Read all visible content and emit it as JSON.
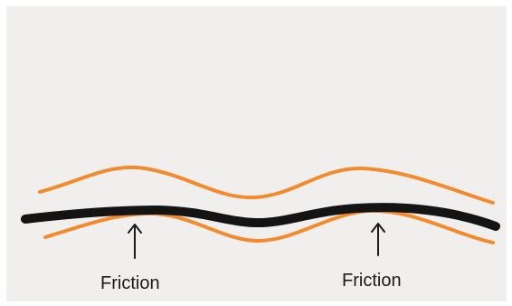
{
  "labels": {
    "left": "Friction",
    "right": "Friction"
  },
  "colors": {
    "background": "#f1efee",
    "guide": "#f28a2e",
    "strand": "#141414",
    "arrow": "#1a1a1a",
    "text": "#1a1a1a"
  }
}
